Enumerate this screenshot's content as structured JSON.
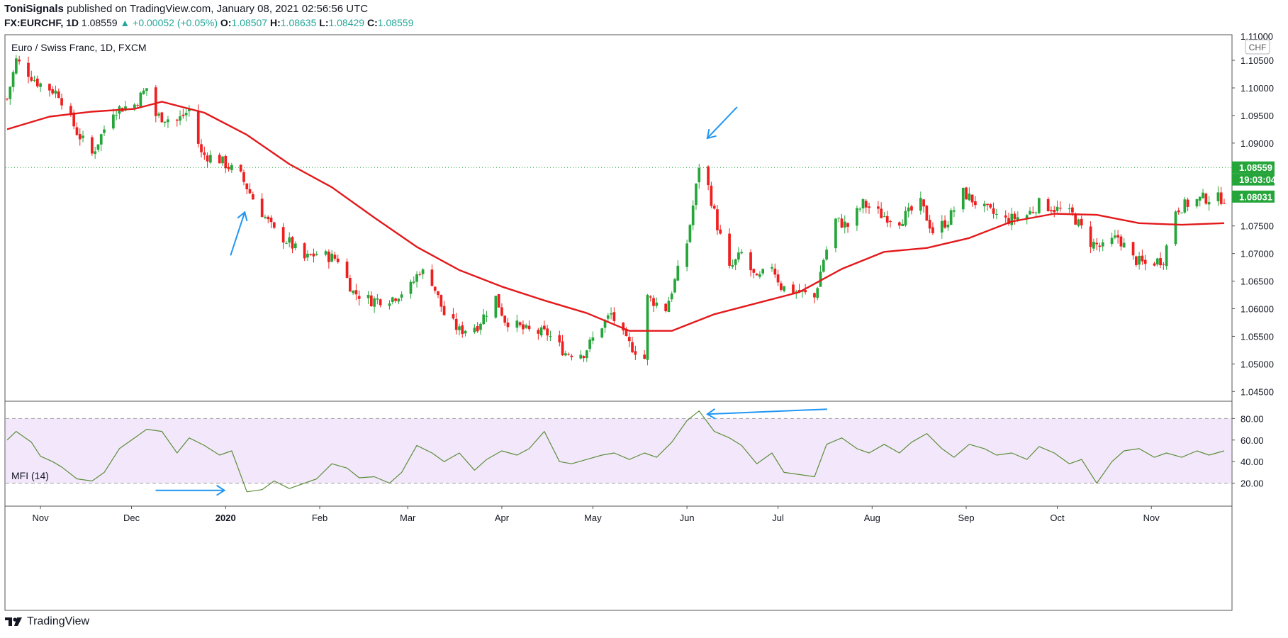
{
  "header": {
    "publisher": "ToniSignals",
    "published_text": "published on TradingView.com, January 08, 2021 02:56:56 UTC",
    "symbol": "FX:EURCHF, 1D",
    "last": "1.08559",
    "change": "▲ +0.00052 (+0.05%)",
    "o_label": "O:",
    "o_value": "1.08507",
    "h_label": "H:",
    "h_value": "1.08635",
    "l_label": "L:",
    "l_value": "1.08429",
    "c_label": "C:",
    "c_value": "1.08559"
  },
  "footer": {
    "brand": "TradingView"
  },
  "colors": {
    "up": "#26a63a",
    "down": "#ef1f1f",
    "ma": "#e3191b",
    "mfi": "#5c8d3a",
    "mfi_band": "#f3e8fb",
    "arrow": "#2196f3",
    "tag": "#25a53a"
  },
  "chart_data": [
    {
      "type": "candlestick",
      "title": "Euro / Swiss Franc, 1D, FXCM",
      "currency_badge": "CHF",
      "y_ticks": [
        "1.10500",
        "1.10000",
        "1.09500",
        "1.09000",
        "1.08500",
        "1.08000",
        "1.07500",
        "1.07000",
        "1.06500",
        "1.06000",
        "1.05500",
        "1.05000",
        "1.04500"
      ],
      "y_top_partial": "1.11000",
      "ylim": [
        1.0435,
        1.1095
      ],
      "x_ticks": [
        "Nov",
        "Dec",
        "2020",
        "Feb",
        "Mar",
        "Apr",
        "May",
        "Jun",
        "Jul",
        "Aug",
        "Sep",
        "Oct",
        "Nov"
      ],
      "price_tags": {
        "last": "1.08559",
        "countdown": "19:03:04",
        "ma": "1.08031"
      },
      "last_price": 1.08559,
      "ma_label_value": 1.08031,
      "start_date": "2019-10-21",
      "end_date": "2020-11-25",
      "anchors": [
        [
          "2019-10-21",
          1.098
        ],
        [
          "2019-10-24",
          1.105
        ],
        [
          "2019-10-31",
          1.101
        ],
        [
          "2019-11-07",
          1.099
        ],
        [
          "2019-11-13",
          1.092
        ],
        [
          "2019-11-18",
          1.088
        ],
        [
          "2019-11-25",
          1.096
        ],
        [
          "2019-12-02",
          1.097
        ],
        [
          "2019-12-06",
          1.1
        ],
        [
          "2019-12-09",
          1.095
        ],
        [
          "2019-12-16",
          1.094
        ],
        [
          "2019-12-20",
          1.096
        ],
        [
          "2019-12-24",
          1.088
        ],
        [
          "2019-12-30",
          1.087
        ],
        [
          "2020-01-06",
          1.084
        ],
        [
          "2020-01-10",
          1.08
        ],
        [
          "2020-01-17",
          1.074
        ],
        [
          "2020-01-22",
          1.072
        ],
        [
          "2020-01-27",
          1.069
        ],
        [
          "2020-01-31",
          1.07
        ],
        [
          "2020-02-07",
          1.069
        ],
        [
          "2020-02-12",
          1.063
        ],
        [
          "2020-02-18",
          1.0615
        ],
        [
          "2020-02-25",
          1.062
        ],
        [
          "2020-03-02",
          1.064
        ],
        [
          "2020-03-05",
          1.067
        ],
        [
          "2020-03-09",
          1.065
        ],
        [
          "2020-03-13",
          1.059
        ],
        [
          "2020-03-18",
          1.056
        ],
        [
          "2020-03-24",
          1.057
        ],
        [
          "2020-03-30",
          1.062
        ],
        [
          "2020-04-02",
          1.058
        ],
        [
          "2020-04-09",
          1.056
        ],
        [
          "2020-04-16",
          1.0555
        ],
        [
          "2020-04-22",
          1.052
        ],
        [
          "2020-04-28",
          1.052
        ],
        [
          "2020-05-04",
          1.057
        ],
        [
          "2020-05-07",
          1.059
        ],
        [
          "2020-05-12",
          1.054
        ],
        [
          "2020-05-18",
          1.051
        ],
        [
          "2020-05-19",
          1.062
        ],
        [
          "2020-05-25",
          1.06
        ],
        [
          "2020-05-28",
          1.065
        ],
        [
          "2020-06-01",
          1.072
        ],
        [
          "2020-06-04",
          1.082
        ],
        [
          "2020-06-05",
          1.086
        ],
        [
          "2020-06-08",
          1.082
        ],
        [
          "2020-06-11",
          1.075
        ],
        [
          "2020-06-15",
          1.067
        ],
        [
          "2020-06-19",
          1.07
        ],
        [
          "2020-06-24",
          1.065
        ],
        [
          "2020-06-29",
          1.068
        ],
        [
          "2020-07-02",
          1.064
        ],
        [
          "2020-07-08",
          1.063
        ],
        [
          "2020-07-13",
          1.062
        ],
        [
          "2020-07-16",
          1.069
        ],
        [
          "2020-07-20",
          1.076
        ],
        [
          "2020-07-24",
          1.075
        ],
        [
          "2020-07-29",
          1.079
        ],
        [
          "2020-08-04",
          1.077
        ],
        [
          "2020-08-10",
          1.076
        ],
        [
          "2020-08-17",
          1.079
        ],
        [
          "2020-08-21",
          1.074
        ],
        [
          "2020-08-26",
          1.076
        ],
        [
          "2020-08-31",
          1.081
        ],
        [
          "2020-09-07",
          1.078
        ],
        [
          "2020-09-14",
          1.076
        ],
        [
          "2020-09-21",
          1.077
        ],
        [
          "2020-09-25",
          1.079
        ],
        [
          "2020-10-01",
          1.078
        ],
        [
          "2020-10-06",
          1.077
        ],
        [
          "2020-10-12",
          1.072
        ],
        [
          "2020-10-16",
          1.071
        ],
        [
          "2020-10-21",
          1.073
        ],
        [
          "2020-10-26",
          1.069
        ],
        [
          "2020-10-30",
          1.068
        ],
        [
          "2020-11-05",
          1.069
        ],
        [
          "2020-11-09",
          1.078
        ],
        [
          "2020-11-13",
          1.079
        ],
        [
          "2020-11-18",
          1.08
        ],
        [
          "2020-11-25",
          1.08
        ]
      ],
      "ma_points": [
        [
          "2019-10-21",
          1.0925
        ],
        [
          "2019-11-04",
          1.0948
        ],
        [
          "2019-11-18",
          1.0957
        ],
        [
          "2019-12-02",
          1.0962
        ],
        [
          "2019-12-11",
          1.0975
        ],
        [
          "2019-12-25",
          1.0955
        ],
        [
          "2020-01-08",
          1.0915
        ],
        [
          "2020-01-22",
          1.0862
        ],
        [
          "2020-02-05",
          1.082
        ],
        [
          "2020-02-19",
          1.0765
        ],
        [
          "2020-03-04",
          1.0712
        ],
        [
          "2020-03-18",
          1.067
        ],
        [
          "2020-04-01",
          1.064
        ],
        [
          "2020-04-15",
          1.0615
        ],
        [
          "2020-04-29",
          1.0592
        ],
        [
          "2020-05-13",
          1.056
        ],
        [
          "2020-05-27",
          1.056
        ],
        [
          "2020-06-10",
          1.059
        ],
        [
          "2020-06-24",
          1.061
        ],
        [
          "2020-07-08",
          1.063
        ],
        [
          "2020-07-22",
          1.0672
        ],
        [
          "2020-08-05",
          1.0703
        ],
        [
          "2020-08-19",
          1.071
        ],
        [
          "2020-09-02",
          1.0728
        ],
        [
          "2020-09-16",
          1.0758
        ],
        [
          "2020-09-30",
          1.0772
        ],
        [
          "2020-10-14",
          1.077
        ],
        [
          "2020-10-28",
          1.0755
        ],
        [
          "2020-11-11",
          1.0752
        ],
        [
          "2020-11-25",
          1.0755
        ]
      ],
      "annotations": [
        {
          "type": "arrow",
          "direction": "up-right",
          "date": "2020-01-08",
          "price": 1.078
        },
        {
          "type": "arrow",
          "direction": "down-left",
          "date": "2020-06-07",
          "price": 1.0905
        }
      ]
    },
    {
      "type": "line",
      "title": "MFI (14)",
      "y_ticks": [
        "80.00",
        "60.00",
        "40.00",
        "20.00"
      ],
      "ylim": [
        0,
        96
      ],
      "band": [
        20,
        80
      ],
      "points": [
        [
          "2019-10-21",
          60
        ],
        [
          "2019-10-24",
          68
        ],
        [
          "2019-10-29",
          58
        ],
        [
          "2019-11-01",
          45
        ],
        [
          "2019-11-05",
          40
        ],
        [
          "2019-11-08",
          35
        ],
        [
          "2019-11-13",
          24
        ],
        [
          "2019-11-18",
          22
        ],
        [
          "2019-11-22",
          30
        ],
        [
          "2019-11-27",
          52
        ],
        [
          "2019-12-02",
          62
        ],
        [
          "2019-12-06",
          70
        ],
        [
          "2019-12-11",
          68
        ],
        [
          "2019-12-16",
          48
        ],
        [
          "2019-12-20",
          62
        ],
        [
          "2019-12-25",
          55
        ],
        [
          "2019-12-30",
          46
        ],
        [
          "2020-01-03",
          50
        ],
        [
          "2020-01-08",
          12
        ],
        [
          "2020-01-13",
          14
        ],
        [
          "2020-01-17",
          22
        ],
        [
          "2020-01-22",
          15
        ],
        [
          "2020-01-27",
          20
        ],
        [
          "2020-01-31",
          24
        ],
        [
          "2020-02-05",
          38
        ],
        [
          "2020-02-10",
          34
        ],
        [
          "2020-02-14",
          25
        ],
        [
          "2020-02-19",
          26
        ],
        [
          "2020-02-24",
          20
        ],
        [
          "2020-02-28",
          30
        ],
        [
          "2020-03-04",
          55
        ],
        [
          "2020-03-09",
          48
        ],
        [
          "2020-03-13",
          40
        ],
        [
          "2020-03-18",
          48
        ],
        [
          "2020-03-23",
          32
        ],
        [
          "2020-03-27",
          42
        ],
        [
          "2020-04-01",
          50
        ],
        [
          "2020-04-06",
          46
        ],
        [
          "2020-04-10",
          52
        ],
        [
          "2020-04-15",
          68
        ],
        [
          "2020-04-20",
          40
        ],
        [
          "2020-04-24",
          38
        ],
        [
          "2020-04-29",
          42
        ],
        [
          "2020-05-04",
          46
        ],
        [
          "2020-05-08",
          48
        ],
        [
          "2020-05-13",
          42
        ],
        [
          "2020-05-18",
          48
        ],
        [
          "2020-05-22",
          44
        ],
        [
          "2020-05-27",
          58
        ],
        [
          "2020-06-01",
          78
        ],
        [
          "2020-06-05",
          87
        ],
        [
          "2020-06-10",
          68
        ],
        [
          "2020-06-15",
          62
        ],
        [
          "2020-06-19",
          55
        ],
        [
          "2020-06-24",
          38
        ],
        [
          "2020-06-29",
          48
        ],
        [
          "2020-07-03",
          30
        ],
        [
          "2020-07-08",
          28
        ],
        [
          "2020-07-13",
          26
        ],
        [
          "2020-07-17",
          56
        ],
        [
          "2020-07-22",
          62
        ],
        [
          "2020-07-27",
          52
        ],
        [
          "2020-07-31",
          48
        ],
        [
          "2020-08-05",
          56
        ],
        [
          "2020-08-10",
          48
        ],
        [
          "2020-08-14",
          58
        ],
        [
          "2020-08-19",
          66
        ],
        [
          "2020-08-24",
          52
        ],
        [
          "2020-08-28",
          44
        ],
        [
          "2020-09-02",
          56
        ],
        [
          "2020-09-07",
          52
        ],
        [
          "2020-09-11",
          46
        ],
        [
          "2020-09-16",
          48
        ],
        [
          "2020-09-21",
          42
        ],
        [
          "2020-09-25",
          54
        ],
        [
          "2020-09-30",
          48
        ],
        [
          "2020-10-05",
          38
        ],
        [
          "2020-10-09",
          42
        ],
        [
          "2020-10-14",
          20
        ],
        [
          "2020-10-19",
          40
        ],
        [
          "2020-10-23",
          50
        ],
        [
          "2020-10-28",
          52
        ],
        [
          "2020-11-02",
          44
        ],
        [
          "2020-11-06",
          48
        ],
        [
          "2020-11-11",
          44
        ],
        [
          "2020-11-16",
          50
        ],
        [
          "2020-11-20",
          46
        ],
        [
          "2020-11-25",
          50
        ]
      ],
      "annotations": [
        {
          "type": "arrow",
          "direction": "left",
          "date": "2020-06-07",
          "value": 86
        },
        {
          "type": "arrow",
          "direction": "right",
          "date": "2020-01-02",
          "value": 14
        }
      ]
    }
  ]
}
